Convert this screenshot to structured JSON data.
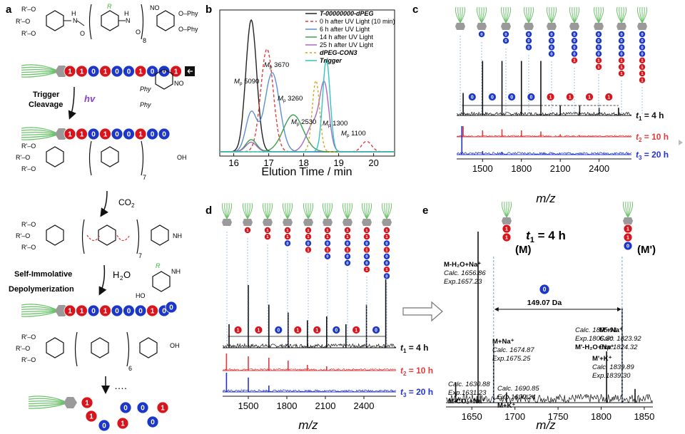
{
  "panels": {
    "a": {
      "label": "a",
      "repeat1": "8",
      "repeat2": "7",
      "repeat3": "7",
      "repeat4": "6",
      "groups": {
        "rprime": "R'–O",
        "r": "R",
        "phy": "O–Phy",
        "phy2": "Phy",
        "no2": "NO",
        "no2sub": "2",
        "oh": "OH",
        "nh2": "NH",
        "nh2sub": "2",
        "nh": "N",
        "h": "H",
        "o": "O",
        "co2": "CO",
        "co2sub": "2",
        "h2o": "H",
        "h2osub": "2",
        "h2otail": "O",
        "nodot": "NO",
        "ho": "HO",
        "ho2": "HO",
        "hn": "H",
        "ellipsis": "…."
      },
      "steps": [
        {
          "line1": "Trigger",
          "line2": "Cleavage",
          "agent": "hv"
        },
        {
          "line1": "Self-Immolative",
          "line2": "Depolymerization"
        }
      ],
      "beads_full": "1101001001",
      "beads_1": "110100100",
      "beads_2": "110100010",
      "free_beads": [
        "1",
        "1",
        "0",
        "0",
        "1",
        "0",
        "0",
        "1"
      ],
      "bead_zero": "0"
    },
    "b": {
      "label": "b"
    },
    "c": {
      "label": "c",
      "bead_labels": [
        "0",
        "1",
        "1",
        "0",
        "1",
        "1",
        "1"
      ],
      "traces": [
        "t1 = 4 h",
        "t2 = 10 h",
        "t3 = 20 h"
      ]
    },
    "d": {
      "label": "d",
      "bead_labels": [
        "1",
        "1",
        "0",
        "1",
        "1",
        "0",
        "1"
      ],
      "traces": [
        "t1 = 4 h",
        "t2 = 10 h",
        "t3 = 20 h"
      ]
    },
    "e": {
      "label": "e",
      "title": "t1 = 4 h",
      "species": {
        "M": "(M)",
        "Mp": "(M')"
      },
      "bead": "0",
      "gap": "149.07 Da",
      "annotations": [
        {
          "l1": "M-H₂O+Na⁺",
          "l2": "Calc. 1656.86",
          "l3": "Exp.1657.23"
        },
        {
          "l1": "M+Na⁺",
          "l2": "Calc. 1674.87",
          "l3": "Exp.1675.25"
        },
        {
          "l1": "Calc. 1630.88",
          "l2": "Exp.1631.23",
          "l3": "M-CO₂+Na⁺"
        },
        {
          "l1": "Calc. 1690.85",
          "l2": "Exp.1690.24",
          "l3": "M+K⁺"
        },
        {
          "l1": "Calc. 1805.91",
          "l2": "Exp.1806.30",
          "l3": "M'-H₂O+Na⁺"
        },
        {
          "l1": "M'+Na⁺",
          "l2": "Calc. 1823.92",
          "l3": "Exp.1824.32"
        },
        {
          "l1": "M'+K⁺",
          "l2": "Calc. 1839.89",
          "l3": "Exp.1839.30"
        }
      ]
    }
  },
  "chart_data": [
    {
      "panel": "b",
      "type": "line",
      "xlabel": "Elution Time / min",
      "ylabel": "",
      "xlim": [
        15.6,
        20.6
      ],
      "xticks": [
        16,
        17,
        18,
        19,
        20
      ],
      "legend_position": "top-right",
      "series": [
        {
          "name": "T-00000000-dPEG",
          "color": "#222222",
          "dash": "",
          "peak_x": 16.5,
          "peak_h": 1.0,
          "width": 0.22
        },
        {
          "name": "0 h after UV Light (10 min)",
          "color": "#e23a3a",
          "dash": "4,3",
          "peak_x": 16.95,
          "peak_h": 0.78,
          "width": 0.25
        },
        {
          "name": "6 h after UV Light",
          "color": "#5b8fd6",
          "dash": "",
          "peak_x": 17.1,
          "peak_h": 0.6,
          "width": 0.3
        },
        {
          "name": "14 h after UV Light",
          "color": "#3aa04a",
          "dash": "",
          "peak_x": 17.7,
          "peak_h": 0.28,
          "width": 0.4
        },
        {
          "name": "25 h after UV Light",
          "color": "#a868c8",
          "dash": "",
          "peak_x": 18.3,
          "peak_h": 0.22,
          "width": 0.3
        },
        {
          "name": "dPEG-CON3",
          "color": "#d8a21a",
          "dash": "3,3",
          "peak_x": 18.35,
          "peak_h": 0.54,
          "width": 0.15
        },
        {
          "name": "Trigger",
          "color": "#2ec4c4",
          "dash": "",
          "peak_x": 18.65,
          "peak_h": 0.7,
          "width": 0.15
        }
      ],
      "annotations": [
        {
          "text": "Mp 5090",
          "x": 16.5
        },
        {
          "text": "Mp 3670",
          "x": 16.95
        },
        {
          "text": "Mp 3260",
          "x": 17.2
        },
        {
          "text": "Mp 2530",
          "x": 17.7
        },
        {
          "text": "Mp 1300",
          "x": 18.35
        },
        {
          "text": "Mp 1100",
          "x": 18.65
        }
      ]
    },
    {
      "panel": "c",
      "type": "line",
      "xlabel": "m/z",
      "xlim": [
        1300,
        2650
      ],
      "xticks": [
        1500,
        1800,
        2100,
        2400
      ],
      "series": [
        {
          "name": "t1 = 4 h",
          "color": "#111111",
          "peaks": [
            [
              1350,
              0.35
            ],
            [
              1500,
              0.85
            ],
            [
              1650,
              0.85
            ],
            [
              1800,
              0.85
            ],
            [
              1950,
              0.85
            ],
            [
              2100,
              0.15
            ],
            [
              2250,
              0.15
            ],
            [
              2400,
              0.12
            ],
            [
              2550,
              0.12
            ]
          ]
        },
        {
          "name": "t2 = 10 h",
          "color": "#e23a3a",
          "peaks": [
            [
              1350,
              0.5
            ],
            [
              1500,
              0.3
            ],
            [
              1650,
              0.35
            ],
            [
              1800,
              0.3
            ],
            [
              1950,
              0.25
            ],
            [
              2100,
              0.12
            ],
            [
              2250,
              0.08
            ]
          ]
        },
        {
          "name": "t3 = 20 h",
          "color": "#2233cc",
          "peaks": [
            [
              1340,
              0.8
            ],
            [
              1500,
              0.1
            ],
            [
              1650,
              0.08
            ]
          ]
        }
      ]
    },
    {
      "panel": "d",
      "type": "line",
      "xlabel": "m/z",
      "xlim": [
        1300,
        2650
      ],
      "xticks": [
        1500,
        1800,
        2100,
        2400
      ],
      "series": [
        {
          "name": "t1 = 4 h",
          "color": "#111111",
          "peaks": [
            [
              1350,
              0.3
            ],
            [
              1500,
              0.8
            ],
            [
              1660,
              0.55
            ],
            [
              1810,
              0.45
            ],
            [
              1960,
              0.35
            ],
            [
              2110,
              0.4
            ],
            [
              2260,
              0.3
            ],
            [
              2420,
              0.55
            ],
            [
              2570,
              0.9
            ]
          ]
        },
        {
          "name": "t2 = 10 h",
          "color": "#e23a3a",
          "peaks": [
            [
              1330,
              0.6
            ],
            [
              1500,
              0.5
            ],
            [
              1660,
              0.45
            ],
            [
              1810,
              0.35
            ],
            [
              1960,
              0.2
            ],
            [
              2110,
              0.15
            ]
          ]
        },
        {
          "name": "t3 = 20 h",
          "color": "#2233cc",
          "peaks": [
            [
              1330,
              0.6
            ],
            [
              1500,
              0.45
            ],
            [
              1660,
              0.2
            ]
          ]
        }
      ]
    },
    {
      "panel": "e",
      "type": "line",
      "xlabel": "m/z",
      "xlim": [
        1620,
        1860
      ],
      "xticks": [
        1650,
        1700,
        1750,
        1800,
        1850
      ],
      "series": [
        {
          "name": "t1 = 4 h",
          "color": "#111111",
          "peaks": [
            [
              1631.23,
              0.12
            ],
            [
              1657.23,
              1.0
            ],
            [
              1675.25,
              0.35
            ],
            [
              1690.24,
              0.06
            ],
            [
              1806.3,
              0.3
            ],
            [
              1824.32,
              0.55
            ],
            [
              1839.3,
              0.08
            ]
          ]
        }
      ]
    }
  ]
}
